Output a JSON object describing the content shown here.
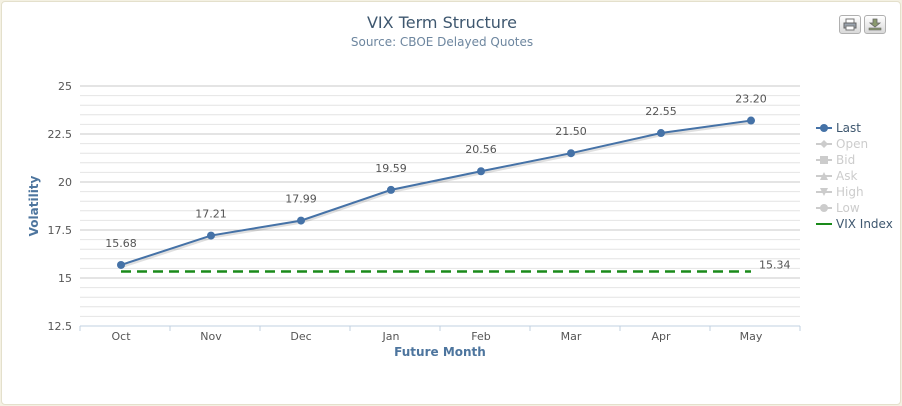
{
  "header": {
    "title": "VIX Term Structure",
    "subtitle": "Source: CBOE Delayed Quotes"
  },
  "toolbar": {
    "print_icon": "printer-icon",
    "export_icon": "download-icon"
  },
  "colors": {
    "last": "#4572a7",
    "vix": "#1a8a1a",
    "inactive": "#cccccc",
    "axis_title": "#4d759e",
    "text": "#3e576f"
  },
  "chart_data": {
    "type": "line",
    "title": "VIX Term Structure",
    "subtitle": "Source: CBOE Delayed Quotes",
    "xlabel": "Future Month",
    "ylabel": "Volatility",
    "categories": [
      "Oct",
      "Nov",
      "Dec",
      "Jan",
      "Feb",
      "Mar",
      "Apr",
      "May"
    ],
    "ylim": [
      12.5,
      25
    ],
    "yticks": [
      12.5,
      15,
      17.5,
      20,
      22.5,
      25
    ],
    "ytick_labels": [
      "12.5",
      "15",
      "17.5",
      "20",
      "22.5",
      "25"
    ],
    "grid": true,
    "legend_position": "right",
    "series": [
      {
        "name": "Last",
        "values": [
          15.68,
          17.21,
          17.99,
          19.59,
          20.56,
          21.5,
          22.55,
          23.2
        ],
        "labels": [
          "15.68",
          "17.21",
          "17.99",
          "19.59",
          "20.56",
          "21.50",
          "22.55",
          "23.20"
        ],
        "visible": true
      },
      {
        "name": "VIX Index",
        "values": [
          15.34,
          15.34,
          15.34,
          15.34,
          15.34,
          15.34,
          15.34,
          15.34
        ],
        "end_label": "15.34",
        "dashed": true,
        "visible": true
      }
    ],
    "legend": [
      {
        "name": "Last",
        "visible": true,
        "symbol": "circle"
      },
      {
        "name": "Open",
        "visible": false,
        "symbol": "diamond"
      },
      {
        "name": "Bid",
        "visible": false,
        "symbol": "square"
      },
      {
        "name": "Ask",
        "visible": false,
        "symbol": "triangle"
      },
      {
        "name": "High",
        "visible": false,
        "symbol": "triangle-down"
      },
      {
        "name": "Low",
        "visible": false,
        "symbol": "circle"
      },
      {
        "name": "VIX Index",
        "visible": true,
        "symbol": "dash"
      }
    ]
  }
}
